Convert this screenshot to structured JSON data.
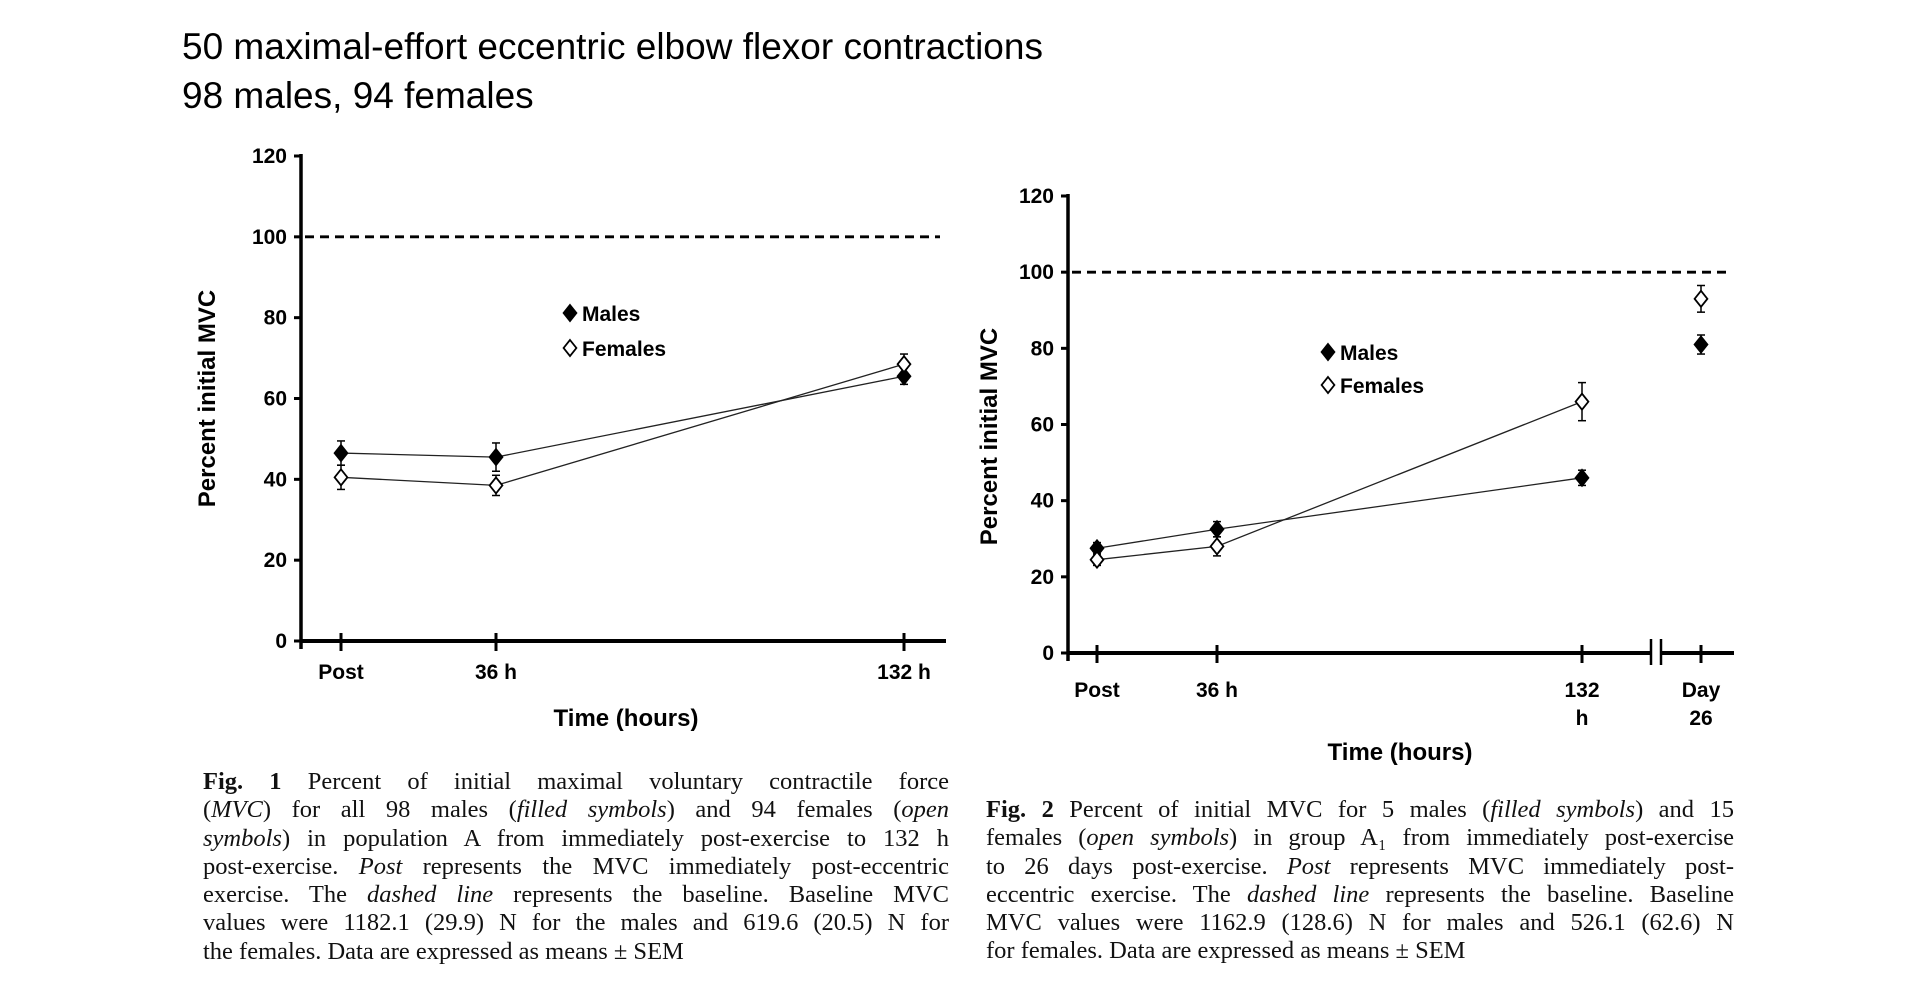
{
  "header": {
    "line1": "50 maximal-effort eccentric elbow flexor contractions",
    "line2": "98 males, 94 females"
  },
  "chart_data": [
    {
      "type": "line",
      "title": "Fig. 1",
      "xlabel": "Time (hours)",
      "ylabel": "Percent initial MVC",
      "ylim": [
        0,
        120
      ],
      "yticks": [
        "0",
        "20",
        "40",
        "60",
        "80",
        "100",
        "120"
      ],
      "categories": [
        "Post",
        "36 h",
        "132 h"
      ],
      "baseline": 100,
      "legend": [
        "Males",
        "Females"
      ],
      "legend_position": "center",
      "series": [
        {
          "name": "Males",
          "marker": "filled-diamond",
          "values": [
            46.5,
            45.5,
            65.5
          ],
          "sem": [
            3,
            3.5,
            2
          ]
        },
        {
          "name": "Females",
          "marker": "open-diamond",
          "values": [
            40.5,
            38.5,
            68.5
          ],
          "sem": [
            3,
            2.5,
            2.5
          ]
        }
      ]
    },
    {
      "type": "line",
      "title": "Fig. 2",
      "xlabel": "Time (hours)",
      "ylabel": "Percent initial MVC",
      "ylim": [
        0,
        120
      ],
      "yticks": [
        "0",
        "20",
        "40",
        "60",
        "80",
        "100",
        "120"
      ],
      "categories": [
        "Post",
        "36 h",
        "132 h",
        "Day 26"
      ],
      "category_lines": [
        [
          "Post"
        ],
        [
          "36 h"
        ],
        [
          "132",
          "h"
        ],
        [
          "Day",
          "26"
        ]
      ],
      "axis_break_before": "Day 26",
      "baseline": 100,
      "legend": [
        "Males",
        "Females"
      ],
      "legend_position": "center",
      "series": [
        {
          "name": "Males",
          "marker": "filled-diamond",
          "values": [
            27.5,
            32.5,
            46,
            81
          ],
          "sem": [
            1.5,
            2,
            2,
            2.5
          ]
        },
        {
          "name": "Females",
          "marker": "open-diamond",
          "values": [
            24.5,
            28,
            66,
            93
          ],
          "sem": [
            1.5,
            2.5,
            5,
            3.5
          ]
        }
      ]
    }
  ],
  "captions": [
    {
      "label": "Fig. 1",
      "lines": [
        [
          {
            "t": "Fig. 1",
            "b": 1
          },
          {
            "t": " Percent of initial maximal voluntary contractile force"
          }
        ],
        [
          {
            "t": "("
          },
          {
            "t": "MVC",
            "i": 1
          },
          {
            "t": ") for all 98 males ("
          },
          {
            "t": "filled symbols",
            "i": 1
          },
          {
            "t": ") and 94 females ("
          },
          {
            "t": "open",
            "i": 1
          }
        ],
        [
          {
            "t": "symbols",
            "i": 1
          },
          {
            "t": ") in population A from immediately post-exercise to 132 h"
          }
        ],
        [
          {
            "t": "post-exercise. "
          },
          {
            "t": "Post",
            "i": 1
          },
          {
            "t": " represents the MVC immediately post-eccentric"
          }
        ],
        [
          {
            "t": "exercise. The "
          },
          {
            "t": "dashed line",
            "i": 1
          },
          {
            "t": " represents the baseline. Baseline MVC"
          }
        ],
        [
          {
            "t": "values were 1182.1 (29.9) N for the males and 619.6 (20.5) N for"
          }
        ],
        [
          {
            "t": "the females. Data are expressed as means ± SEM"
          }
        ]
      ]
    },
    {
      "label": "Fig. 2",
      "lines": [
        [
          {
            "t": "Fig. 2",
            "b": 1
          },
          {
            "t": "  Percent of initial MVC for 5 males ("
          },
          {
            "t": "filled symbols",
            "i": 1
          },
          {
            "t": ") and 15"
          }
        ],
        [
          {
            "t": "females ("
          },
          {
            "t": "open symbols",
            "i": 1
          },
          {
            "t": ") in group A₁ from immediately post-exercise"
          }
        ],
        [
          {
            "t": "to 26 days post-exercise. "
          },
          {
            "t": "Post",
            "i": 1
          },
          {
            "t": " represents MVC immediately post-"
          }
        ],
        [
          {
            "t": "eccentric exercise. The "
          },
          {
            "t": "dashed line",
            "i": 1
          },
          {
            "t": " represents the baseline. Baseline"
          }
        ],
        [
          {
            "t": "MVC values were 1162.9 (128.6) N for males and 526.1 (62.6) N"
          }
        ],
        [
          {
            "t": "for females. Data are expressed as means ± SEM"
          }
        ]
      ]
    }
  ]
}
